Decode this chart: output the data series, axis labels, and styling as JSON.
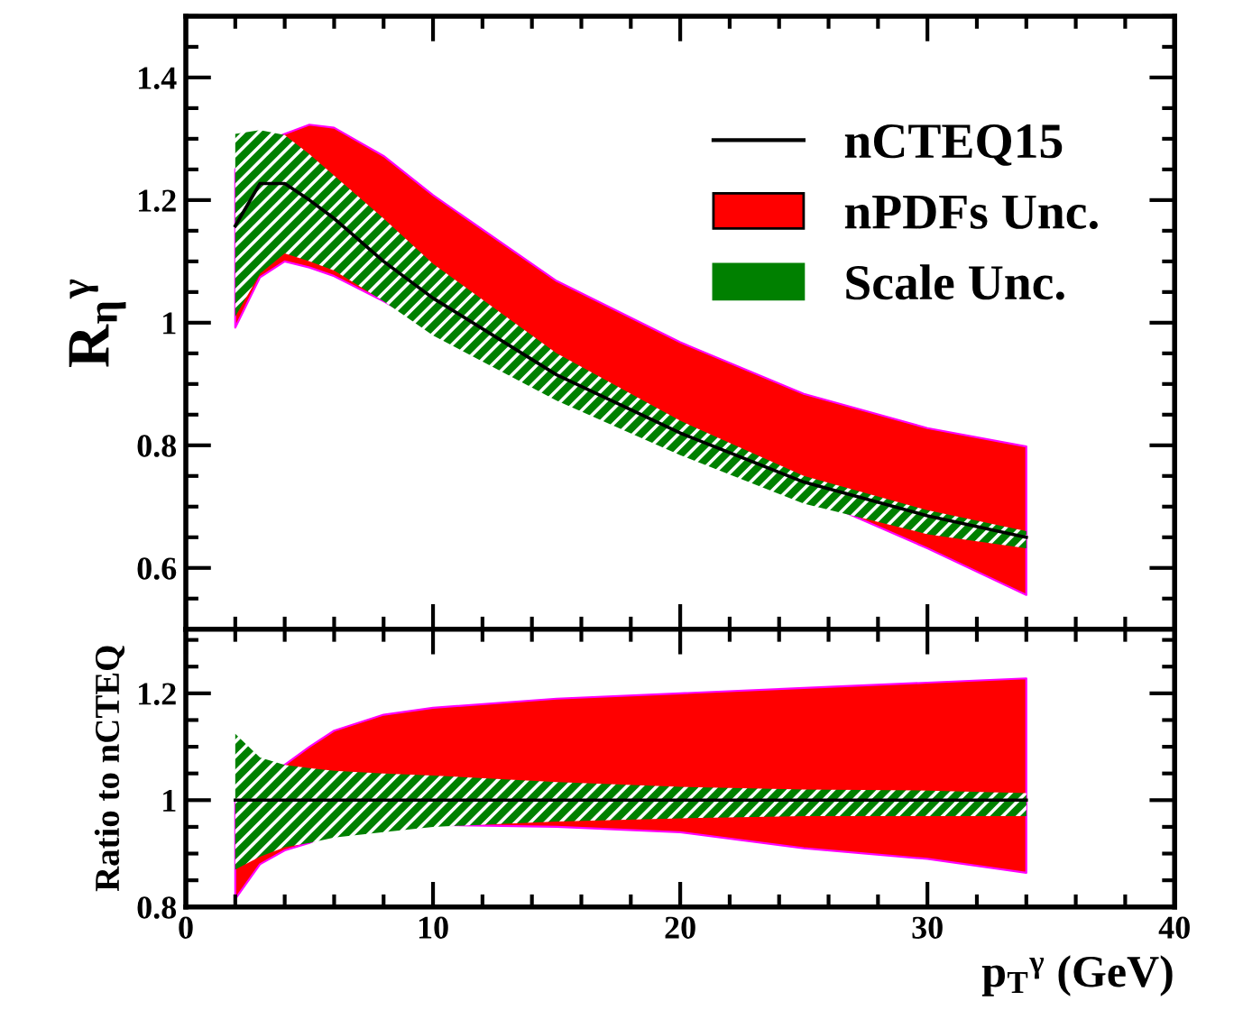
{
  "chart_data": [
    {
      "type": "line",
      "ylabel": "R$_{η}$$^{γ}$",
      "x": [
        2,
        3,
        4,
        5,
        6,
        8,
        10,
        15,
        20,
        25,
        30,
        34
      ],
      "xlim": [
        0,
        40
      ],
      "xticks": [
        0,
        10,
        20,
        30,
        40
      ],
      "ylim": [
        0.5,
        1.5
      ],
      "yticks": [
        0.6,
        0.8,
        1,
        1.2,
        1.4
      ],
      "tick_labels": "y",
      "legend": "top right",
      "grid": false,
      "series": [
        {
          "name": "nPDFs Unc.",
          "color": "#ff0000",
          "values": [
            null,
            null,
            null,
            null,
            null,
            null,
            null,
            null,
            null,
            null,
            null,
            null
          ],
          "lower": [
            0.992,
            1.074,
            1.1,
            1.09,
            1.076,
            1.035,
            0.99,
            0.89,
            0.8,
            0.72,
            0.632,
            0.556
          ],
          "upper": [
            1.25,
            1.29,
            1.308,
            1.323,
            1.318,
            1.272,
            1.208,
            1.068,
            0.968,
            0.884,
            0.828,
            0.798
          ]
        },
        {
          "name": "Scale Unc.",
          "color": "#008000",
          "values": [
            null,
            null,
            null,
            null,
            null,
            null,
            null,
            null,
            null,
            null,
            null,
            null
          ],
          "lower": [
            1.01,
            1.08,
            1.113,
            1.1,
            1.085,
            1.035,
            0.979,
            0.873,
            0.784,
            0.705,
            0.655,
            0.632
          ],
          "upper": [
            1.308,
            1.314,
            1.306,
            1.275,
            1.24,
            1.17,
            1.096,
            0.95,
            0.84,
            0.75,
            0.694,
            0.66
          ]
        },
        {
          "name": "nCTEQ15",
          "type": "line",
          "color": "#000000",
          "values": [
            1.158,
            1.227,
            1.227,
            1.2,
            1.17,
            1.1,
            1.04,
            0.915,
            0.82,
            0.74,
            0.685,
            0.65
          ]
        }
      ]
    },
    {
      "type": "line",
      "ylabel": "Ratio to nCTEQ",
      "xlabel": "p$_{T}$$^{γ}$ (GeV)",
      "x": [
        2,
        3,
        4,
        5,
        6,
        8,
        10,
        15,
        20,
        25,
        30,
        34
      ],
      "xlim": [
        0,
        40
      ],
      "xticks": [
        0,
        10,
        20,
        30,
        40
      ],
      "ylim": [
        0.8,
        1.32
      ],
      "yticks": [
        0.8,
        1,
        1.2
      ],
      "grid": false,
      "series": [
        {
          "color": "#ff0000",
          "values": [
            null,
            null,
            null,
            null,
            null,
            null,
            null,
            null,
            null,
            null,
            null,
            null
          ],
          "lower": [
            0.815,
            0.88,
            0.906,
            0.92,
            0.94,
            0.95,
            0.954,
            0.95,
            0.94,
            0.91,
            0.89,
            0.864
          ],
          "upper": [
            1.0,
            1.05,
            1.066,
            1.1,
            1.13,
            1.16,
            1.173,
            1.19,
            1.2,
            1.21,
            1.22,
            1.228
          ]
        },
        {
          "color": "#008000",
          "values": [
            null,
            null,
            null,
            null,
            null,
            null,
            null,
            null,
            null,
            null,
            null,
            null
          ],
          "lower": [
            0.87,
            0.894,
            0.912,
            0.92,
            0.93,
            0.94,
            0.95,
            0.96,
            0.966,
            0.97,
            0.97,
            0.97
          ],
          "upper": [
            1.124,
            1.08,
            1.066,
            1.06,
            1.055,
            1.05,
            1.046,
            1.034,
            1.025,
            1.02,
            1.018,
            1.013
          ]
        },
        {
          "type": "line",
          "color": "#000000",
          "values": [
            1,
            1,
            1,
            1,
            1,
            1,
            1,
            1,
            1,
            1,
            1,
            1
          ]
        }
      ]
    }
  ]
}
